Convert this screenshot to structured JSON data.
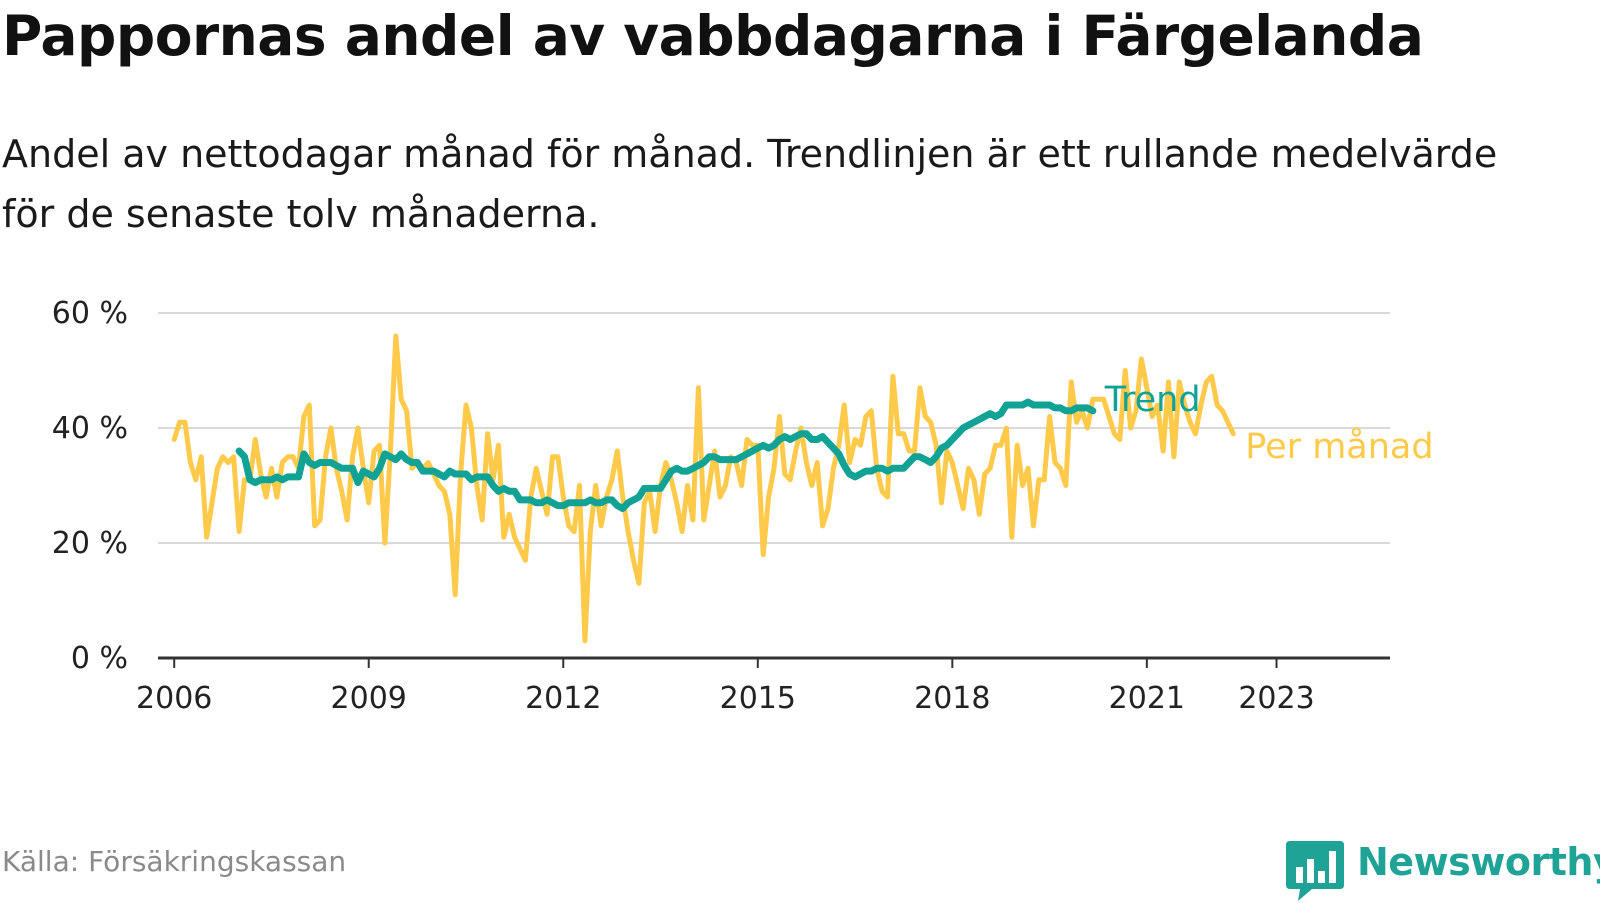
{
  "title": "Pappornas andel av vabbdagarna i Färgelanda",
  "subtitle": "Andel av nettodagar månad för månad. Trendlinjen är ett rullande medelvärde för de senaste tolv månaderna.",
  "source": "Källa: Försäkringskassan",
  "brand": {
    "name": "Newsworthy",
    "logo_icon": "newsworthy-chart-icon",
    "color": "#1fa396"
  },
  "chart_data": {
    "type": "line",
    "title": "Pappornas andel av vabbdagarna i Färgelanda",
    "xlabel": "",
    "ylabel": "",
    "x_range": [
      "2005-10",
      "2024-10"
    ],
    "ylim": [
      0,
      60
    ],
    "y_ticks": [
      0,
      20,
      40,
      60
    ],
    "y_tick_labels": [
      "0 %",
      "20 %",
      "40 %",
      "60 %"
    ],
    "x_ticks": [
      "2006-01",
      "2009-01",
      "2012-01",
      "2015-01",
      "2018-01",
      "2021-01",
      "2023-01"
    ],
    "x_tick_labels": [
      "2006",
      "2009",
      "2012",
      "2015",
      "2018",
      "2021",
      "2023"
    ],
    "grid": true,
    "legend": "direct labels at line ends (right)",
    "series": [
      {
        "name": "Per månad",
        "color": "#ffc94a",
        "x_start": "2006-01",
        "frequency": "monthly",
        "values": [
          38,
          41,
          41,
          34,
          31,
          35,
          21,
          27,
          33,
          35,
          34,
          35,
          22,
          31,
          31,
          38,
          32,
          28,
          33,
          28,
          34,
          35,
          35,
          33,
          42,
          44,
          23,
          24,
          35,
          40,
          33,
          29,
          24,
          35,
          40,
          33,
          27,
          36,
          37,
          20,
          36,
          56,
          45,
          43,
          33,
          34,
          33,
          34,
          32,
          30,
          29,
          25,
          11,
          32,
          44,
          40,
          30,
          24,
          39,
          31,
          37,
          21,
          25,
          21,
          19,
          17,
          28,
          33,
          29,
          25,
          35,
          35,
          28,
          23,
          22,
          30,
          3,
          22,
          30,
          23,
          28,
          31,
          36,
          28,
          22,
          17,
          13,
          27,
          29,
          22,
          30,
          34,
          31,
          27,
          22,
          30,
          24,
          47,
          24,
          30,
          36,
          28,
          30,
          35,
          34,
          30,
          38,
          37,
          37,
          18,
          28,
          33,
          42,
          32,
          31,
          36,
          40,
          34,
          30,
          34,
          23,
          26,
          33,
          37,
          44,
          34,
          38,
          37,
          42,
          43,
          33,
          29,
          28,
          49,
          39,
          39,
          36,
          36,
          47,
          42,
          41,
          37,
          27,
          36,
          34,
          30,
          26,
          33,
          31,
          25,
          32,
          33,
          37,
          37,
          40,
          21,
          37,
          30,
          33,
          23,
          31,
          31,
          42,
          34,
          33,
          30,
          48,
          41,
          43,
          40,
          45,
          45,
          45,
          42,
          39,
          38,
          50,
          40,
          43,
          52,
          47,
          42,
          44,
          36,
          48,
          35,
          48,
          44,
          41,
          39,
          44,
          48,
          49,
          44,
          43,
          41,
          39
        ]
      },
      {
        "name": "Trend",
        "color": "#10a295",
        "x_start": "2007-01",
        "frequency": "monthly",
        "values": [
          36,
          35,
          31,
          30.5,
          31,
          31,
          31,
          31.5,
          31,
          31.5,
          31.5,
          31.5,
          35.5,
          34,
          33.5,
          34,
          34,
          34,
          33.5,
          33,
          33,
          33,
          30.5,
          32.5,
          32,
          31.5,
          33,
          35.5,
          35,
          34.5,
          35.5,
          34.5,
          34,
          34,
          32.5,
          32.5,
          32.5,
          32,
          31.5,
          32.5,
          32,
          32,
          32,
          31,
          31.5,
          31.5,
          31.5,
          30,
          29,
          29.5,
          29,
          29,
          27.5,
          27.5,
          27.5,
          27,
          27,
          27.5,
          27,
          26.5,
          26.5,
          27,
          27,
          27,
          27,
          27.5,
          27,
          27,
          27.5,
          27.5,
          26.5,
          26,
          27,
          27.5,
          28,
          29.5,
          29.5,
          29.5,
          29.5,
          31,
          32.5,
          33,
          32.5,
          32.5,
          33,
          33.5,
          34,
          35,
          35,
          34.5,
          34.5,
          34.5,
          34.5,
          35,
          35.5,
          36,
          36.5,
          37,
          36.5,
          37,
          38,
          38.5,
          38,
          38.5,
          39,
          39,
          38,
          38,
          38.5,
          37.5,
          36.5,
          35.5,
          33.5,
          32,
          31.5,
          32,
          32.5,
          32.5,
          33,
          33,
          32.5,
          33,
          33,
          33,
          34,
          35,
          35,
          34.5,
          34,
          35,
          36.5,
          37,
          38,
          39,
          40,
          40.5,
          41,
          41.5,
          42,
          42.5,
          42,
          42.5,
          44,
          44,
          44,
          44,
          44.5,
          44,
          44,
          44,
          44,
          43.5,
          43.5,
          43,
          43,
          43.5,
          43.5,
          43.5,
          43
        ]
      }
    ]
  }
}
